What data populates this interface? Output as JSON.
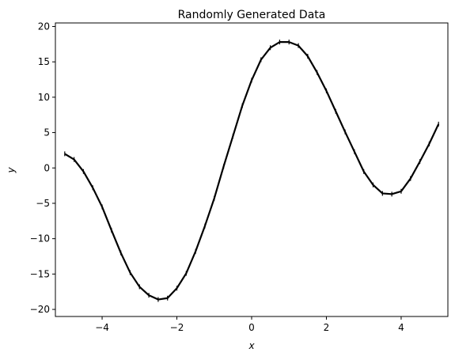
{
  "chart_data": {
    "type": "line",
    "title": "Randomly Generated Data",
    "xlabel": "x",
    "ylabel": "y",
    "xlim": [
      -5.25,
      5.25
    ],
    "ylim": [
      -21.0,
      20.5
    ],
    "xticks": [
      -4,
      -2,
      0,
      2,
      4
    ],
    "xtick_labels": [
      "−4",
      "−2",
      "0",
      "2",
      "4"
    ],
    "yticks": [
      -20,
      -15,
      -10,
      -5,
      0,
      5,
      10,
      15,
      20
    ],
    "ytick_labels": [
      "−20",
      "−15",
      "−10",
      "−5",
      "0",
      "5",
      "10",
      "15",
      "20"
    ],
    "grid": false,
    "series": [
      {
        "color": "#000000",
        "x": [
          -5.0,
          -4.75,
          -4.5,
          -4.25,
          -4.0,
          -3.75,
          -3.5,
          -3.25,
          -3.0,
          -2.75,
          -2.5,
          -2.25,
          -2.0,
          -1.75,
          -1.5,
          -1.25,
          -1.0,
          -0.75,
          -0.5,
          -0.25,
          0.0,
          0.25,
          0.5,
          0.75,
          1.0,
          1.25,
          1.5,
          1.75,
          2.0,
          2.25,
          2.5,
          2.75,
          3.0,
          3.25,
          3.5,
          3.75,
          4.0,
          4.25,
          4.5,
          4.75,
          5.0
        ],
        "y": [
          2.0,
          1.2,
          -0.5,
          -2.8,
          -5.5,
          -8.8,
          -12.0,
          -14.8,
          -16.8,
          -18.0,
          -18.6,
          -18.4,
          -17.0,
          -14.9,
          -11.8,
          -8.2,
          -4.3,
          0.2,
          4.5,
          8.8,
          12.4,
          15.3,
          17.0,
          17.8,
          17.8,
          17.3,
          15.8,
          13.5,
          10.9,
          8.0,
          5.1,
          2.3,
          -0.5,
          -2.4,
          -3.6,
          -3.7,
          -3.3,
          -1.5,
          0.9,
          3.4,
          6.2
        ]
      }
    ]
  }
}
